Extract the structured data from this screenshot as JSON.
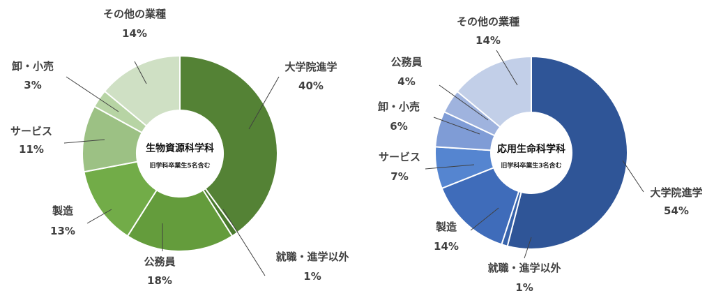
{
  "chart_data": [
    {
      "type": "pie",
      "variant": "donut",
      "title": "生物資源科学科",
      "subtitle": "旧学科卒業生5名含む",
      "categories": [
        "大学院進学",
        "就職・進学以外",
        "公務員",
        "製造",
        "サービス",
        "卸・小売",
        "その他の業種"
      ],
      "values": [
        40,
        1,
        18,
        13,
        11,
        3,
        14
      ],
      "value_labels": [
        "40%",
        "1%",
        "18%",
        "13%",
        "11%",
        "3%",
        "14%"
      ],
      "colors": [
        "#548235",
        "#4a7a2e",
        "#649c3c",
        "#72ac48",
        "#9cc184",
        "#b7d4a4",
        "#cfe0c4"
      ]
    },
    {
      "type": "pie",
      "variant": "donut",
      "title": "応用生命科学科",
      "subtitle": "旧学科卒業生3名含む",
      "categories": [
        "大学院進学",
        "就職・進学以外",
        "製造",
        "サービス",
        "卸・小売",
        "公務員",
        "その他の業種"
      ],
      "values": [
        54,
        1,
        14,
        7,
        6,
        4,
        14
      ],
      "value_labels": [
        "54%",
        "1%",
        "14%",
        "7%",
        "6%",
        "4%",
        "14%"
      ],
      "colors": [
        "#2f5597",
        "#3763ab",
        "#3f6cba",
        "#5585d0",
        "#7f9cd6",
        "#9fb3de",
        "#c2cfe8"
      ]
    }
  ]
}
